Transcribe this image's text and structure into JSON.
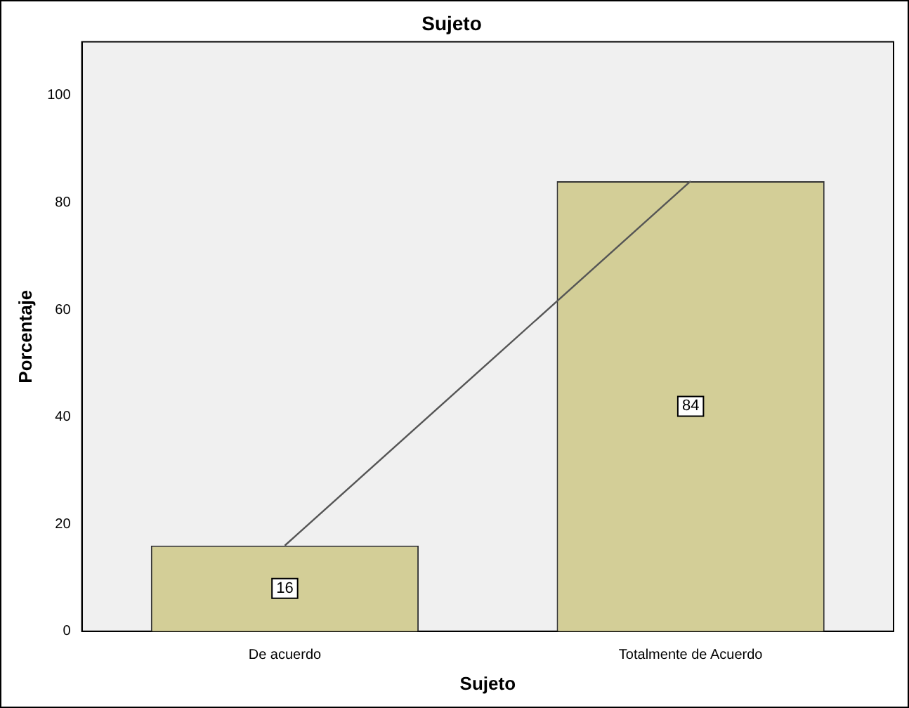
{
  "chart_data": {
    "type": "bar",
    "title": "Sujeto",
    "xlabel": "Sujeto",
    "ylabel": "Porcentaje",
    "categories": [
      "De acuerdo",
      "Totalmente de Acuerdo"
    ],
    "series": [
      {
        "color": "#d3ce97",
        "values": [
          16,
          84
        ],
        "data_labels": true
      },
      {
        "type": "line",
        "color": "#555555",
        "values": [
          16,
          84
        ],
        "marker": "none"
      }
    ],
    "ylim": [
      0,
      110
    ],
    "yticks": [
      0,
      20,
      40,
      60,
      80,
      100
    ],
    "grid": false,
    "legend": false
  }
}
